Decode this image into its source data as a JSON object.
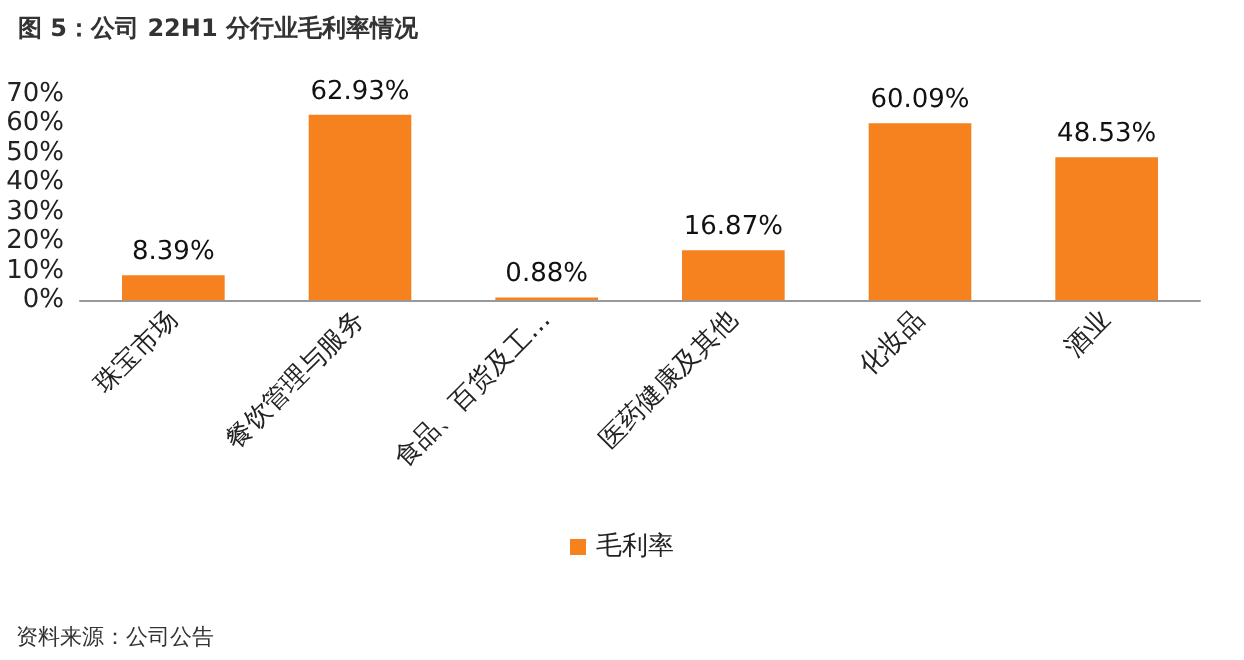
{
  "chart_data": {
    "type": "bar",
    "title": "图 5：公司 22H1 分行业毛利率情况",
    "categories": [
      "珠宝市场",
      "餐饮管理与服务",
      "食品、百货及工…",
      "医药健康及其他",
      "化妆品",
      "酒业"
    ],
    "series": [
      {
        "name": "毛利率",
        "color": "#f5821f",
        "values": [
          8.39,
          62.93,
          0.88,
          16.87,
          60.09,
          48.53
        ],
        "value_labels": [
          "8.39%",
          "62.93%",
          "0.88%",
          "16.87%",
          "60.09%",
          "48.53%"
        ]
      }
    ],
    "ylim": [
      0,
      70
    ],
    "yticks": [
      {
        "value": 0,
        "label": "0%"
      },
      {
        "value": 10,
        "label": "10%"
      },
      {
        "value": 20,
        "label": "20%"
      },
      {
        "value": 30,
        "label": "30%"
      },
      {
        "value": 40,
        "label": "40%"
      },
      {
        "value": 50,
        "label": "50%"
      },
      {
        "value": 60,
        "label": "60%"
      },
      {
        "value": 70,
        "label": "70%"
      }
    ],
    "grid": false,
    "legend": "bottom",
    "annotations": [
      "资料来源：公司公告"
    ]
  }
}
